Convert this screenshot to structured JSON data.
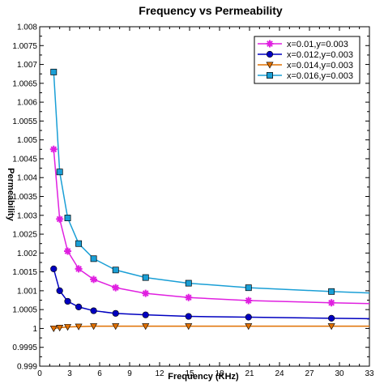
{
  "chart_data": {
    "type": "line",
    "title": "Frequency vs Permeability",
    "xlabel": "Frequency (KHz)",
    "ylabel": "Permeability",
    "xlim": [
      0,
      33
    ],
    "ylim": [
      0.999,
      1.008
    ],
    "xticks": [
      0,
      3,
      6,
      9,
      12,
      15,
      18,
      21,
      24,
      27,
      30,
      33
    ],
    "yticks": [
      0.999,
      0.9995,
      1,
      1.0005,
      1.001,
      1.0015,
      1.002,
      1.0025,
      1.003,
      1.0035,
      1.004,
      1.0045,
      1.005,
      1.0055,
      1.006,
      1.0065,
      1.007,
      1.0075,
      1.008
    ],
    "ytick_labels": [
      "0.999",
      "0.9995",
      "1",
      "1.0005",
      "1.001",
      "1.0015",
      "1.002",
      "1.0025",
      "1.003",
      "1.0035",
      "1.004",
      "1.0045",
      "1.005",
      "1.0055",
      "1.006",
      "1.0065",
      "1.007",
      "1.0075",
      "1.008"
    ],
    "grid": false,
    "legend_position": "top-right",
    "series": [
      {
        "name": "x=0.01,y=0.003",
        "color": "#e020e0",
        "marker": "star",
        "x": [
          1.4,
          2.0,
          2.8,
          3.9,
          5.4,
          7.6,
          10.6,
          14.9,
          20.9,
          29.2,
          33
        ],
        "y": [
          1.00475,
          1.0029,
          1.00205,
          1.00158,
          1.0013,
          1.00108,
          1.00093,
          1.00082,
          1.00074,
          1.00068,
          1.00066
        ]
      },
      {
        "name": "x=0.012,y=0.003",
        "color": "#0000c0",
        "marker": "circle",
        "x": [
          1.4,
          2.0,
          2.8,
          3.9,
          5.4,
          7.6,
          10.6,
          14.9,
          20.9,
          29.2,
          33
        ],
        "y": [
          1.00158,
          1.001,
          1.00072,
          1.00057,
          1.00047,
          1.0004,
          1.00036,
          1.00032,
          1.0003,
          1.00027,
          1.00026
        ]
      },
      {
        "name": "x=0.014,y=0.003",
        "color": "#e07000",
        "marker": "triangle-down",
        "x": [
          1.4,
          2.0,
          2.8,
          3.9,
          5.4,
          7.6,
          10.6,
          14.9,
          20.9,
          29.2,
          33
        ],
        "y": [
          1.0,
          1.00002,
          1.00004,
          1.00005,
          1.00006,
          1.00006,
          1.00006,
          1.00006,
          1.00006,
          1.00006,
          1.00006
        ]
      },
      {
        "name": "x=0.016,y=0.003",
        "color": "#1a9fd6",
        "marker": "square",
        "x": [
          1.4,
          2.0,
          2.8,
          3.9,
          5.4,
          7.6,
          10.6,
          14.9,
          20.9,
          29.2,
          33
        ],
        "y": [
          1.0068,
          1.00415,
          1.00293,
          1.00225,
          1.00185,
          1.00155,
          1.00135,
          1.0012,
          1.00108,
          1.00098,
          1.00094
        ]
      }
    ]
  }
}
